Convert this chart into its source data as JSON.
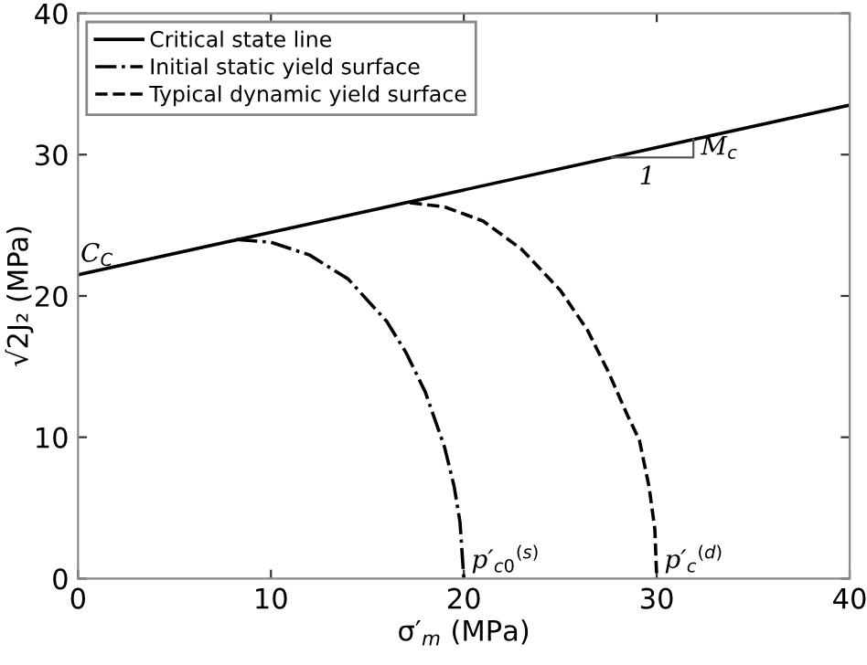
{
  "chart_data": {
    "type": "line",
    "xlabel": "σ′$_{m}$ (MPa)",
    "ylabel": "√2J₂ (MPa)",
    "xlim": [
      0,
      40
    ],
    "ylim": [
      0,
      40
    ],
    "xticks": [
      0,
      10,
      20,
      30,
      40
    ],
    "yticks": [
      0,
      10,
      20,
      30,
      40
    ],
    "grid": false,
    "legend": "top left",
    "marker": "none",
    "series": [
      {
        "name": "Critical state line",
        "color": "#000000",
        "line_style": "solid",
        "x": [
          0,
          40
        ],
        "values": [
          21.5,
          33.5
        ]
      },
      {
        "name": "Initial static yield surface",
        "color": "#000000",
        "line_style": "dashdot",
        "x": [
          8.2,
          10,
          12,
          14,
          16,
          17,
          18,
          19,
          19.5,
          19.8,
          20
        ],
        "values": [
          24.0,
          23.8,
          22.9,
          21.2,
          18.2,
          16.0,
          13.2,
          9.3,
          6.5,
          4.0,
          0
        ]
      },
      {
        "name": "Typical dynamic yield surface",
        "color": "#000000",
        "line_style": "dashed",
        "x": [
          17.2,
          19,
          21,
          23,
          25,
          26.4,
          27.5,
          28.5,
          29.1,
          29.6,
          29.9,
          30
        ],
        "values": [
          26.6,
          26.3,
          25.3,
          23.3,
          20.4,
          17.6,
          14.6,
          11.5,
          9.8,
          6.5,
          3.5,
          0
        ]
      }
    ],
    "annotations": [
      {
        "text": "C$_{C}$",
        "x": 0,
        "y": 21.5
      },
      {
        "text": "M$_{c}$",
        "x": 31.9,
        "y": 30.5
      },
      {
        "text": "1",
        "x": 29.5,
        "y": 29.8
      },
      {
        "text": "p′$_{c0}$$^{(s)}$",
        "x": 20,
        "y": 0
      },
      {
        "text": "p′$_{c}$$^{(d)}$",
        "x": 30,
        "y": 0
      }
    ]
  }
}
